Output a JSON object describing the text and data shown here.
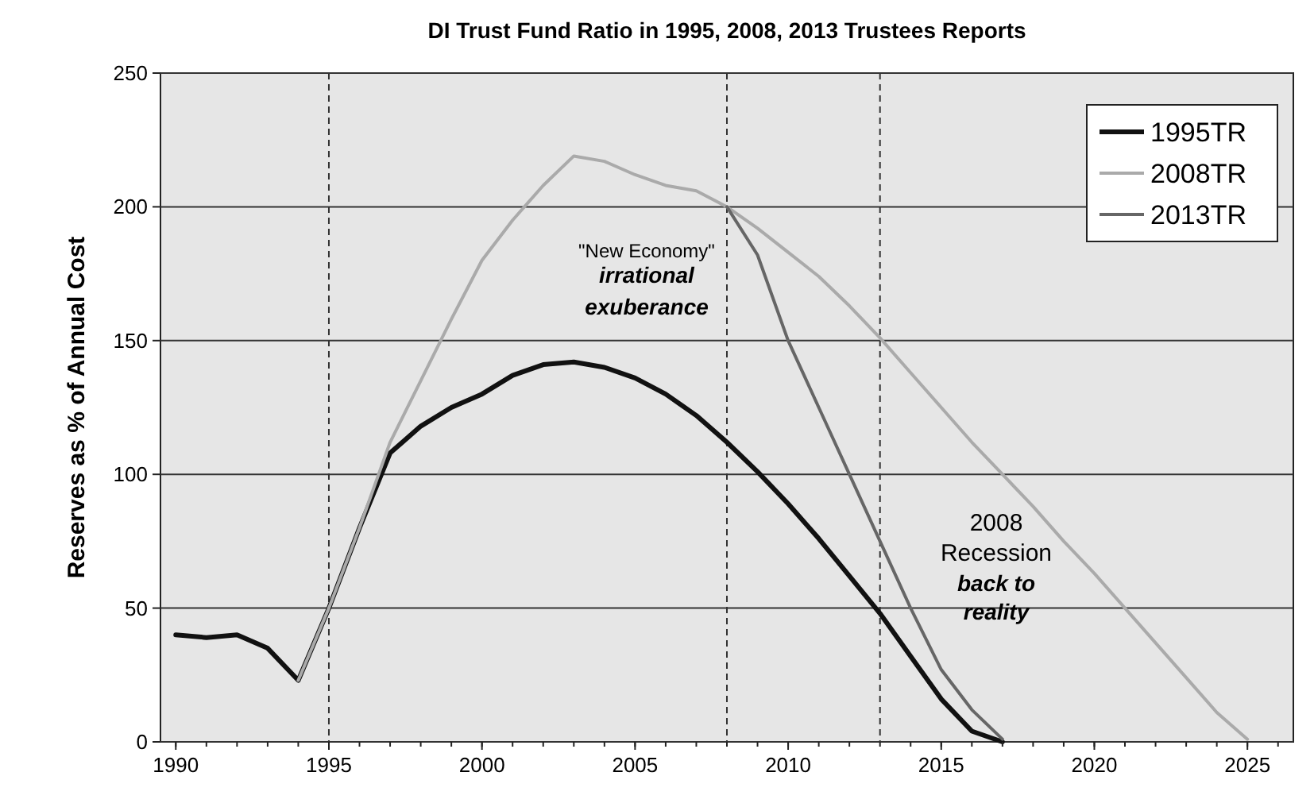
{
  "chart_data": {
    "type": "line",
    "title": "DI Trust Fund Ratio in 1995, 2008, 2013 Trustees Reports",
    "ylabel": "Reserves as % of Annual Cost",
    "xlim": [
      1989.5,
      2026.5
    ],
    "xticks": [
      1990,
      1995,
      2000,
      2005,
      2010,
      2015,
      2020,
      2025
    ],
    "ylim": [
      0,
      250
    ],
    "yticks": [
      0,
      50,
      100,
      150,
      200,
      250
    ],
    "grid": "y",
    "legend": "top right",
    "marker": "none",
    "line_style": "solid",
    "ref_lines": [
      {
        "axis": "x",
        "value": 1995,
        "line_style": "dashed",
        "color": "#333333"
      },
      {
        "axis": "x",
        "value": 2008,
        "line_style": "dashed",
        "color": "#333333"
      },
      {
        "axis": "x",
        "value": 2013,
        "line_style": "dashed",
        "color": "#333333"
      }
    ],
    "annotations": [
      "\"New Economy\"",
      "irrational",
      "exuberance",
      "2008",
      "Recession",
      "back to",
      "reality"
    ],
    "series": [
      {
        "name": "1995TR",
        "color": "#111111",
        "x": [
          1990,
          1991,
          1992,
          1993,
          1994,
          1995,
          1996,
          1997,
          1998,
          1999,
          2000,
          2001,
          2002,
          2003,
          2004,
          2005,
          2006,
          2007,
          2008,
          2009,
          2010,
          2011,
          2012,
          2013,
          2014,
          2015,
          2016,
          2017
        ],
        "values": [
          40,
          39,
          40,
          35,
          23,
          50,
          80,
          108,
          118,
          125,
          130,
          137,
          141,
          142,
          140,
          136,
          130,
          122,
          112,
          101,
          89,
          76,
          62,
          48,
          32,
          16,
          4,
          0
        ]
      },
      {
        "name": "2008TR",
        "color": "#aaaaaa",
        "x": [
          1994,
          1995,
          1996,
          1997,
          1998,
          1999,
          2000,
          2001,
          2002,
          2003,
          2004,
          2005,
          2006,
          2007,
          2008,
          2009,
          2010,
          2011,
          2012,
          2013,
          2014,
          2015,
          2016,
          2017,
          2018,
          2019,
          2020,
          2021,
          2022,
          2023,
          2024,
          2025
        ],
        "values": [
          23,
          50,
          80,
          112,
          135,
          158,
          180,
          195,
          208,
          219,
          217,
          212,
          208,
          206,
          200,
          192,
          183,
          174,
          163,
          151,
          138,
          125,
          112,
          100,
          88,
          75,
          63,
          50,
          37,
          24,
          11,
          1
        ]
      },
      {
        "name": "2013TR",
        "color": "#666666",
        "x": [
          2008,
          2009,
          2010,
          2011,
          2012,
          2013,
          2014,
          2015,
          2016,
          2017
        ],
        "values": [
          200,
          182,
          150,
          125,
          100,
          75,
          50,
          27,
          12,
          1
        ]
      }
    ]
  }
}
